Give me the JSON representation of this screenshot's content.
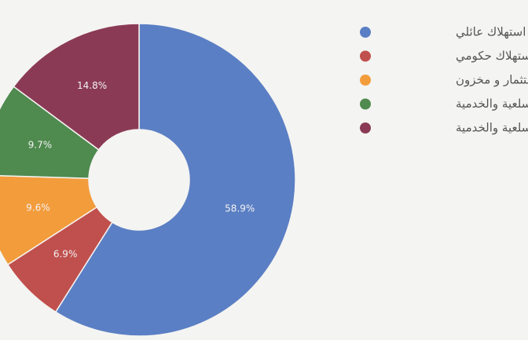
{
  "chart_data": {
    "type": "donut",
    "categories": [
      "استهلاك عائلي",
      "استهلاك حكومي",
      "استثمار و مخزون",
      "الصادرات السلعية والخدمية",
      "الواردات السلعية والخدمية"
    ],
    "values": [
      58.9,
      6.9,
      9.6,
      9.7,
      14.8
    ],
    "value_labels": [
      "58.9%",
      "6.9%",
      "9.6%",
      "9.7%",
      "14.8%"
    ],
    "colors": [
      "#5b7fc4",
      "#c0504d",
      "#f39c3c",
      "#4f8a4f",
      "#8b3a55"
    ],
    "legend": "right"
  }
}
